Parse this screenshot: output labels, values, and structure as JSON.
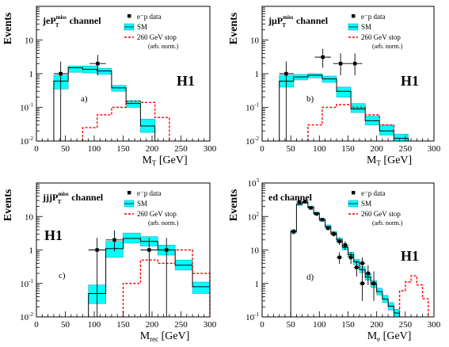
{
  "chart_data": [
    {
      "type": "bar",
      "panel_label": "a)",
      "channel": "jeP_T^miss channel",
      "channel_main": "jeP",
      "channel_sub": "T",
      "channel_sup": "miss",
      "channel_suffix": " channel",
      "h1_label": "H1",
      "legend": {
        "data": "e⁻p data",
        "sm": "SM",
        "stop": "260 GeV stop",
        "stop_note": "(arb. norm.)"
      },
      "ylabel": "Events",
      "xlabel": "M_T [GeV]",
      "xlabel_main": "M",
      "xlabel_sub": "T",
      "xlabel_units": " [GeV]",
      "xlim": [
        0,
        300
      ],
      "ylim": [
        0.01,
        100
      ],
      "ylog": true,
      "xticks": [
        0,
        50,
        100,
        150,
        200,
        250,
        300
      ],
      "yticks": [
        {
          "v": 0.01,
          "b": "10",
          "e": "-2"
        },
        {
          "v": 0.1,
          "b": "10",
          "e": "-1"
        },
        {
          "v": 1,
          "b": "1",
          "e": ""
        },
        {
          "v": 10,
          "b": "10",
          "e": ""
        }
      ],
      "sm_bins": [
        {
          "lo": 30,
          "hi": 55,
          "lo_err": 0.35,
          "val": 0.6,
          "hi_err": 0.9
        },
        {
          "lo": 55,
          "hi": 80,
          "lo_err": 1.1,
          "val": 1.5,
          "hi_err": 1.7
        },
        {
          "lo": 80,
          "hi": 105,
          "lo_err": 1.05,
          "val": 1.35,
          "hi_err": 1.7
        },
        {
          "lo": 105,
          "hi": 130,
          "lo_err": 0.95,
          "val": 1.2,
          "hi_err": 1.45
        },
        {
          "lo": 130,
          "hi": 155,
          "lo_err": 0.3,
          "val": 0.38,
          "hi_err": 0.45
        },
        {
          "lo": 155,
          "hi": 180,
          "lo_err": 0.1,
          "val": 0.13,
          "hi_err": 0.16
        },
        {
          "lo": 180,
          "hi": 205,
          "lo_err": 0.018,
          "val": 0.028,
          "hi_err": 0.045
        }
      ],
      "data_points": [
        {
          "x": 42,
          "y": 1,
          "ylo": 0.01,
          "yhi": 2.3,
          "xlo": 30,
          "xhi": 55
        },
        {
          "x": 106,
          "y": 2,
          "ylo": 0.9,
          "yhi": 3.6,
          "xlo": 92,
          "xhi": 120
        }
      ],
      "stop": {
        "edges": [
          80,
          105,
          130,
          155,
          180,
          205,
          230
        ],
        "values": [
          0.025,
          0.06,
          0.1,
          0.15,
          0.14,
          0.05
        ],
        "extra_drop": true
      }
    },
    {
      "type": "bar",
      "panel_label": "b)",
      "channel": "jμP_T^miss channel",
      "channel_main": "jμP",
      "channel_sub": "T",
      "channel_sup": "miss",
      "channel_suffix": " channel",
      "h1_label": "H1",
      "legend": {
        "data": "e⁻p data",
        "sm": "SM",
        "stop": "260 GeV stop",
        "stop_note": "(arb. norm.)"
      },
      "ylabel": "Events",
      "xlabel": "M_T [GeV]",
      "xlabel_main": "M",
      "xlabel_sub": "T",
      "xlabel_units": " [GeV]",
      "xlim": [
        0,
        300
      ],
      "ylim": [
        0.01,
        100
      ],
      "ylog": true,
      "xticks": [
        0,
        50,
        100,
        150,
        200,
        250,
        300
      ],
      "yticks": [
        {
          "v": 0.01,
          "b": "10",
          "e": "-2"
        },
        {
          "v": 0.1,
          "b": "10",
          "e": "-1"
        },
        {
          "v": 1,
          "b": "1",
          "e": ""
        },
        {
          "v": 10,
          "b": "10",
          "e": ""
        }
      ],
      "sm_bins": [
        {
          "lo": 30,
          "hi": 55,
          "lo_err": 0.4,
          "val": 0.6,
          "hi_err": 0.9
        },
        {
          "lo": 55,
          "hi": 80,
          "lo_err": 0.65,
          "val": 0.8,
          "hi_err": 0.95
        },
        {
          "lo": 80,
          "hi": 105,
          "lo_err": 0.75,
          "val": 0.9,
          "hi_err": 1.0
        },
        {
          "lo": 105,
          "hi": 130,
          "lo_err": 0.55,
          "val": 0.7,
          "hi_err": 0.85
        },
        {
          "lo": 130,
          "hi": 155,
          "lo_err": 0.2,
          "val": 0.3,
          "hi_err": 0.4
        },
        {
          "lo": 155,
          "hi": 180,
          "lo_err": 0.07,
          "val": 0.09,
          "hi_err": 0.13
        },
        {
          "lo": 180,
          "hi": 205,
          "lo_err": 0.03,
          "val": 0.04,
          "hi_err": 0.055
        },
        {
          "lo": 205,
          "hi": 230,
          "lo_err": 0.015,
          "val": 0.02,
          "hi_err": 0.03
        },
        {
          "lo": 230,
          "hi": 255,
          "lo_err": 0.008,
          "val": 0.012,
          "hi_err": 0.016
        }
      ],
      "data_points": [
        {
          "x": 42,
          "y": 1,
          "ylo": 0.01,
          "yhi": 2.3,
          "xlo": 30,
          "xhi": 55
        },
        {
          "x": 106,
          "y": 3.1,
          "ylo": 1.5,
          "yhi": 5.5,
          "xlo": 92,
          "xhi": 120
        },
        {
          "x": 137,
          "y": 2,
          "ylo": 0.9,
          "yhi": 4,
          "xlo": 124,
          "xhi": 150
        },
        {
          "x": 162,
          "y": 2,
          "ylo": 0.9,
          "yhi": 4,
          "xlo": 150,
          "xhi": 175
        }
      ],
      "stop": {
        "edges": [
          80,
          105,
          130,
          155,
          180,
          205,
          230
        ],
        "values": [
          0.03,
          0.1,
          0.12,
          0.1,
          0.06,
          0.03
        ],
        "extra_drop": true
      }
    },
    {
      "type": "bar",
      "panel_label": "c)",
      "channel": "jjjP_T^miss channel",
      "channel_main": "jjjP",
      "channel_sub": "T",
      "channel_sup": "miss",
      "channel_suffix": " channel",
      "h1_label": "H1",
      "legend": {
        "data": "e⁻p data",
        "sm": "SM",
        "stop": "260 GeV stop",
        "stop_note": "(arb. norm.)"
      },
      "ylabel": "Events",
      "xlabel": "M_rec [GeV]",
      "xlabel_main": "M",
      "xlabel_sub": "rec",
      "xlabel_units": " [GeV]",
      "xlim": [
        0,
        300
      ],
      "ylim": [
        0.01,
        100
      ],
      "ylog": true,
      "xticks": [
        0,
        50,
        100,
        150,
        200,
        250,
        300
      ],
      "yticks": [
        {
          "v": 0.01,
          "b": "10",
          "e": "-2"
        },
        {
          "v": 0.1,
          "b": "10",
          "e": "-1"
        },
        {
          "v": 1,
          "b": "1",
          "e": ""
        },
        {
          "v": 10,
          "b": "10",
          "e": ""
        }
      ],
      "sm_bins": [
        {
          "lo": 90,
          "hi": 120,
          "lo_err": 0.025,
          "val": 0.05,
          "hi_err": 0.09
        },
        {
          "lo": 120,
          "hi": 150,
          "lo_err": 0.6,
          "val": 1.1,
          "hi_err": 1.8
        },
        {
          "lo": 150,
          "hi": 180,
          "lo_err": 1.6,
          "val": 2.2,
          "hi_err": 3.2
        },
        {
          "lo": 180,
          "hi": 210,
          "lo_err": 1.3,
          "val": 1.8,
          "hi_err": 2.5
        },
        {
          "lo": 210,
          "hi": 240,
          "lo_err": 0.7,
          "val": 1.0,
          "hi_err": 1.4
        },
        {
          "lo": 240,
          "hi": 270,
          "lo_err": 0.25,
          "val": 0.35,
          "hi_err": 0.5
        },
        {
          "lo": 270,
          "hi": 300,
          "lo_err": 0.05,
          "val": 0.08,
          "hi_err": 0.11
        }
      ],
      "data_points": [
        {
          "x": 105,
          "y": 1,
          "ylo": 0.01,
          "yhi": 2.3,
          "xlo": 90,
          "xhi": 120
        },
        {
          "x": 135,
          "y": 2,
          "ylo": 0.9,
          "yhi": 3.8,
          "xlo": 120,
          "xhi": 150
        },
        {
          "x": 195,
          "y": 1,
          "ylo": 0.01,
          "yhi": 2.3,
          "xlo": 180,
          "xhi": 210
        },
        {
          "x": 225,
          "y": 1,
          "ylo": 0.01,
          "yhi": 2.3,
          "xlo": 210,
          "xhi": 240
        }
      ],
      "stop": {
        "edges": [
          150,
          180,
          210,
          240,
          270,
          300
        ],
        "values": [
          0.1,
          0.5,
          0.4,
          1.0,
          0.2
        ],
        "extra_drop": false
      }
    },
    {
      "type": "bar",
      "panel_label": "d)",
      "channel": "ed channel",
      "channel_main": "ed",
      "channel_sub": "",
      "channel_sup": "",
      "channel_suffix": " channel",
      "h1_label": "H1",
      "legend": {
        "data": "e⁻p data",
        "sm": "SM",
        "stop": "260 GeV stop",
        "stop_note": "(arb. norm.)"
      },
      "ylabel": "Events",
      "xlabel": "M_e [GeV]",
      "xlabel_main": "M",
      "xlabel_sub": "e",
      "xlabel_units": " [GeV]",
      "xlim": [
        0,
        300
      ],
      "ylim": [
        0.1,
        1000
      ],
      "ylog": true,
      "xticks": [
        0,
        50,
        100,
        150,
        200,
        250,
        300
      ],
      "yticks": [
        {
          "v": 0.1,
          "b": "10",
          "e": "-1"
        },
        {
          "v": 1,
          "b": "1",
          "e": ""
        },
        {
          "v": 10,
          "b": "10",
          "e": ""
        },
        {
          "v": 100,
          "b": "10",
          "e": "2"
        },
        {
          "v": 1000,
          "b": "10",
          "e": "3"
        }
      ],
      "sm_bins": [
        {
          "lo": 50,
          "hi": 60,
          "lo_err": 32,
          "val": 36,
          "hi_err": 40
        },
        {
          "lo": 60,
          "hi": 70,
          "lo_err": 215,
          "val": 230,
          "hi_err": 245
        },
        {
          "lo": 70,
          "hi": 80,
          "lo_err": 245,
          "val": 260,
          "hi_err": 275
        },
        {
          "lo": 80,
          "hi": 90,
          "lo_err": 175,
          "val": 190,
          "hi_err": 205
        },
        {
          "lo": 90,
          "hi": 100,
          "lo_err": 115,
          "val": 125,
          "hi_err": 135
        },
        {
          "lo": 100,
          "hi": 110,
          "lo_err": 72,
          "val": 80,
          "hi_err": 88
        },
        {
          "lo": 110,
          "hi": 120,
          "lo_err": 45,
          "val": 50,
          "hi_err": 56
        },
        {
          "lo": 120,
          "hi": 130,
          "lo_err": 28,
          "val": 32,
          "hi_err": 36
        },
        {
          "lo": 130,
          "hi": 140,
          "lo_err": 17,
          "val": 20,
          "hi_err": 23
        },
        {
          "lo": 140,
          "hi": 150,
          "lo_err": 10,
          "val": 12,
          "hi_err": 14
        },
        {
          "lo": 150,
          "hi": 160,
          "lo_err": 6,
          "val": 7.2,
          "hi_err": 8.6
        },
        {
          "lo": 160,
          "hi": 170,
          "lo_err": 3.6,
          "val": 4.4,
          "hi_err": 5.3
        },
        {
          "lo": 170,
          "hi": 180,
          "lo_err": 2.1,
          "val": 2.6,
          "hi_err": 3.2
        },
        {
          "lo": 180,
          "hi": 190,
          "lo_err": 1.25,
          "val": 1.55,
          "hi_err": 1.9
        },
        {
          "lo": 190,
          "hi": 200,
          "lo_err": 0.75,
          "val": 0.95,
          "hi_err": 1.2
        },
        {
          "lo": 200,
          "hi": 210,
          "lo_err": 0.45,
          "val": 0.57,
          "hi_err": 0.72
        },
        {
          "lo": 210,
          "hi": 220,
          "lo_err": 0.27,
          "val": 0.34,
          "hi_err": 0.44
        },
        {
          "lo": 220,
          "hi": 230,
          "lo_err": 0.16,
          "val": 0.21,
          "hi_err": 0.27
        },
        {
          "lo": 230,
          "hi": 240,
          "lo_err": 0.1,
          "val": 0.13,
          "hi_err": 0.17
        }
      ],
      "data_points": [
        {
          "x": 55,
          "y": 35,
          "ylo": 29,
          "yhi": 42,
          "xlo": 50,
          "xhi": 60
        },
        {
          "x": 65,
          "y": 270,
          "ylo": 250,
          "yhi": 290,
          "xlo": 60,
          "xhi": 70
        },
        {
          "x": 75,
          "y": 280,
          "ylo": 260,
          "yhi": 300,
          "xlo": 70,
          "xhi": 80
        },
        {
          "x": 85,
          "y": 180,
          "ylo": 165,
          "yhi": 195,
          "xlo": 80,
          "xhi": 90
        },
        {
          "x": 95,
          "y": 120,
          "ylo": 108,
          "yhi": 132,
          "xlo": 90,
          "xhi": 100
        },
        {
          "x": 105,
          "y": 80,
          "ylo": 71,
          "yhi": 90,
          "xlo": 100,
          "xhi": 110
        },
        {
          "x": 115,
          "y": 45,
          "ylo": 38,
          "yhi": 52,
          "xlo": 110,
          "xhi": 120
        },
        {
          "x": 125,
          "y": 30,
          "ylo": 25,
          "yhi": 36,
          "xlo": 120,
          "xhi": 130
        },
        {
          "x": 135,
          "y": 18,
          "ylo": 14,
          "yhi": 23,
          "xlo": 130,
          "xhi": 140
        },
        {
          "x": 145,
          "y": 14,
          "ylo": 10,
          "yhi": 18,
          "xlo": 140,
          "xhi": 150
        },
        {
          "x": 155,
          "y": 6,
          "ylo": 3.8,
          "yhi": 8.5,
          "xlo": 150,
          "xhi": 160
        },
        {
          "x": 165,
          "y": 3,
          "ylo": 1.6,
          "yhi": 4.8,
          "xlo": 160,
          "xhi": 170
        },
        {
          "x": 175,
          "y": 4,
          "ylo": 2.3,
          "yhi": 6,
          "xlo": 170,
          "xhi": 180
        },
        {
          "x": 185,
          "y": 2,
          "ylo": 0.9,
          "yhi": 3.5,
          "xlo": 180,
          "xhi": 190
        },
        {
          "x": 195,
          "y": 1,
          "ylo": 0.3,
          "yhi": 2.3,
          "xlo": 190,
          "xhi": 200
        },
        {
          "x": 175,
          "y": 1,
          "ylo": 0.3,
          "yhi": 2.3,
          "xlo": 170,
          "xhi": 180
        },
        {
          "x": 135,
          "y": 6,
          "ylo": 3.8,
          "yhi": 8.5,
          "xlo": 130,
          "xhi": 140
        }
      ],
      "stop": {
        "edges": [
          240,
          250,
          260,
          270,
          280,
          290
        ],
        "values": [
          0.6,
          1.1,
          1.7,
          0.9,
          0.35
        ],
        "extra_drop": false
      }
    }
  ]
}
